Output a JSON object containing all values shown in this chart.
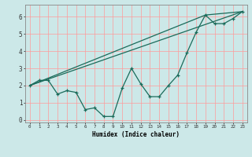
{
  "title": "",
  "xlabel": "Humidex (Indice chaleur)",
  "background_color": "#cce8e8",
  "grid_color": "#ff9999",
  "line_color": "#1a6b5a",
  "xlim": [
    -0.5,
    23.5
  ],
  "ylim": [
    -0.15,
    6.7
  ],
  "xticks": [
    0,
    1,
    2,
    3,
    4,
    5,
    6,
    7,
    8,
    9,
    10,
    11,
    12,
    13,
    14,
    15,
    16,
    17,
    18,
    19,
    20,
    21,
    22,
    23
  ],
  "yticks": [
    0,
    1,
    2,
    3,
    4,
    5,
    6
  ],
  "zigzag_x": [
    0,
    1,
    2,
    3,
    4,
    5,
    6,
    7,
    8,
    9,
    10,
    11,
    12,
    13,
    14,
    15,
    16,
    17,
    18,
    19,
    20,
    21,
    22,
    23
  ],
  "zigzag_y": [
    2.0,
    2.3,
    2.3,
    1.5,
    1.7,
    1.6,
    0.6,
    0.7,
    0.2,
    0.2,
    1.85,
    3.0,
    2.1,
    1.35,
    1.35,
    2.0,
    2.6,
    3.9,
    5.1,
    6.1,
    5.6,
    5.6,
    5.9,
    6.3
  ],
  "line2_x": [
    0,
    23
  ],
  "line2_y": [
    2.0,
    6.3
  ],
  "line3_x": [
    0,
    19,
    23
  ],
  "line3_y": [
    2.0,
    6.1,
    6.3
  ]
}
